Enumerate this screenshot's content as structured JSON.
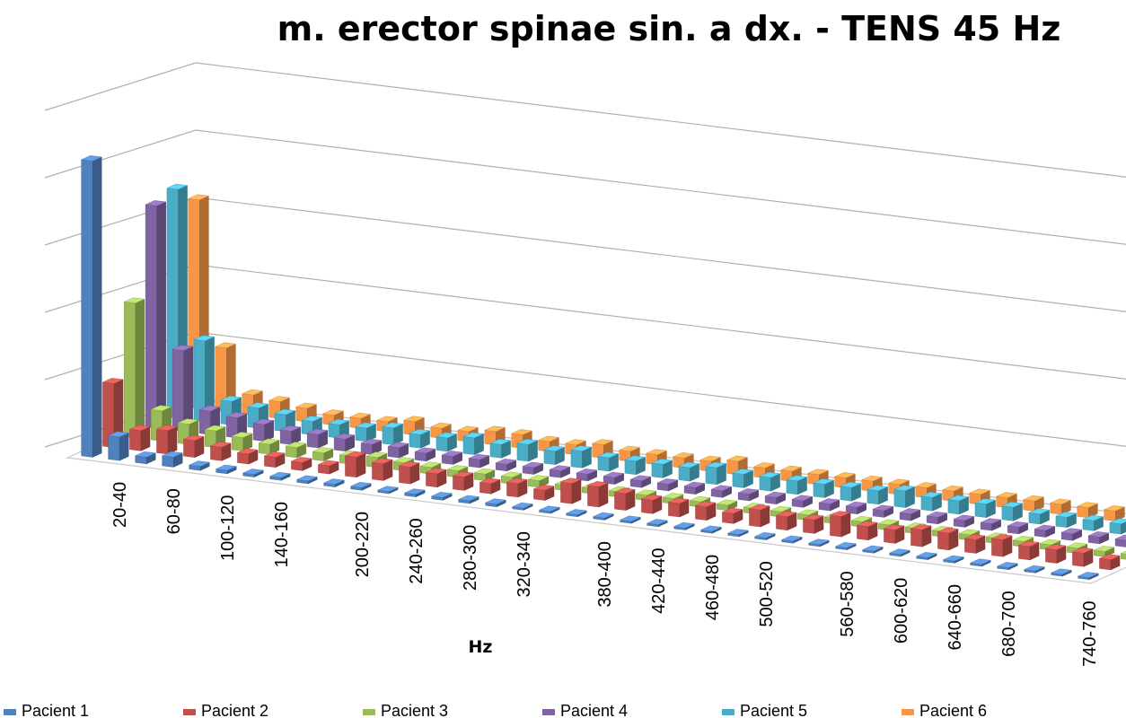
{
  "chart_data": {
    "type": "bar",
    "title": "m. erector spinae sin. a dx. - TENS 45 Hz",
    "xlabel": "Hz",
    "ylabel": "",
    "categories": [
      "20-40",
      "40-60",
      "60-80",
      "80-100",
      "100-120",
      "120-140",
      "140-160",
      "160-180",
      "180-200",
      "200-220",
      "220-240",
      "240-260",
      "260-280",
      "280-300",
      "300-320",
      "320-340",
      "340-360",
      "360-380",
      "380-400",
      "400-420",
      "420-440",
      "440-460",
      "460-480",
      "480-500",
      "500-520",
      "520-540",
      "540-560",
      "560-580",
      "580-600",
      "600-620",
      "620-640",
      "640-660",
      "660-680",
      "680-700",
      "700-720",
      "720-740",
      "740-760",
      "760-780"
    ],
    "tick_labels_shown": [
      "20-40",
      "60-80",
      "100-120",
      "140-160",
      "200-220",
      "240-260",
      "280-300",
      "320-340",
      "380-400",
      "420-440",
      "460-480",
      "500-520",
      "560-580",
      "600-620",
      "640-660",
      "680-700",
      "740-760"
    ],
    "ylim": [
      0,
      5.5
    ],
    "grid": true,
    "legend_position": "bottom",
    "series": [
      {
        "name": "Pacient 1",
        "color": "#4F81BD",
        "values": [
          4.4,
          0.35,
          0.1,
          0.15,
          0.06,
          0.05,
          0.04,
          0.04,
          0.04,
          0.04,
          0.04,
          0.03,
          0.04,
          0.04,
          0.04,
          0.04,
          0.03,
          0.03,
          0.03,
          0.03,
          0.03,
          0.03,
          0.03,
          0.03,
          0.03,
          0.03,
          0.03,
          0.03,
          0.03,
          0.03,
          0.03,
          0.03,
          0.03,
          0.03,
          0.03,
          0.03,
          0.03,
          0.03
        ]
      },
      {
        "name": "Pacient 2",
        "color": "#C0504D",
        "values": [
          0.95,
          0.3,
          0.35,
          0.25,
          0.2,
          0.15,
          0.15,
          0.12,
          0.12,
          0.3,
          0.25,
          0.25,
          0.2,
          0.2,
          0.15,
          0.2,
          0.15,
          0.3,
          0.3,
          0.25,
          0.2,
          0.2,
          0.2,
          0.15,
          0.25,
          0.2,
          0.2,
          0.3,
          0.2,
          0.2,
          0.25,
          0.25,
          0.2,
          0.25,
          0.2,
          0.2,
          0.2,
          0.15
        ]
      },
      {
        "name": "Pacient 3",
        "color": "#9BBB59",
        "values": [
          2.0,
          0.45,
          0.3,
          0.25,
          0.2,
          0.15,
          0.15,
          0.12,
          0.12,
          0.15,
          0.12,
          0.1,
          0.1,
          0.1,
          0.1,
          0.1,
          0.08,
          0.08,
          0.08,
          0.08,
          0.08,
          0.08,
          0.08,
          0.08,
          0.08,
          0.08,
          0.08,
          0.08,
          0.08,
          0.08,
          0.08,
          0.08,
          0.08,
          0.08,
          0.08,
          0.08,
          0.08,
          0.08
        ]
      },
      {
        "name": "Pacient 4",
        "color": "#8064A2",
        "values": [
          3.3,
          1.2,
          0.35,
          0.3,
          0.25,
          0.2,
          0.2,
          0.18,
          0.15,
          0.15,
          0.12,
          0.12,
          0.12,
          0.1,
          0.1,
          0.1,
          0.1,
          0.1,
          0.1,
          0.1,
          0.1,
          0.1,
          0.1,
          0.1,
          0.1,
          0.1,
          0.1,
          0.1,
          0.1,
          0.1,
          0.1,
          0.1,
          0.1,
          0.1,
          0.1,
          0.1,
          0.1,
          0.1
        ]
      },
      {
        "name": "Pacient 5",
        "color": "#4BACC6",
        "values": [
          3.4,
          1.2,
          0.35,
          0.3,
          0.25,
          0.2,
          0.2,
          0.2,
          0.25,
          0.2,
          0.2,
          0.25,
          0.2,
          0.25,
          0.2,
          0.25,
          0.2,
          0.2,
          0.2,
          0.2,
          0.25,
          0.2,
          0.2,
          0.2,
          0.2,
          0.2,
          0.2,
          0.25,
          0.2,
          0.2,
          0.2,
          0.2,
          0.15,
          0.15,
          0.15,
          0.15,
          0.15,
          0.1
        ]
      },
      {
        "name": "Pacient 6",
        "color": "#F79646",
        "values": [
          3.1,
          0.95,
          0.3,
          0.25,
          0.2,
          0.15,
          0.15,
          0.15,
          0.2,
          0.15,
          0.15,
          0.2,
          0.2,
          0.15,
          0.15,
          0.2,
          0.15,
          0.15,
          0.15,
          0.15,
          0.2,
          0.15,
          0.15,
          0.15,
          0.15,
          0.15,
          0.15,
          0.15,
          0.15,
          0.15,
          0.15,
          0.15,
          0.15,
          0.15,
          0.15,
          0.15,
          0.15,
          0.1
        ]
      }
    ]
  },
  "legend_items": [
    "Pacient 1",
    "Pacient 2",
    "Pacient 3",
    "Pacient 4",
    "Pacient 5",
    "Pacient 6"
  ]
}
